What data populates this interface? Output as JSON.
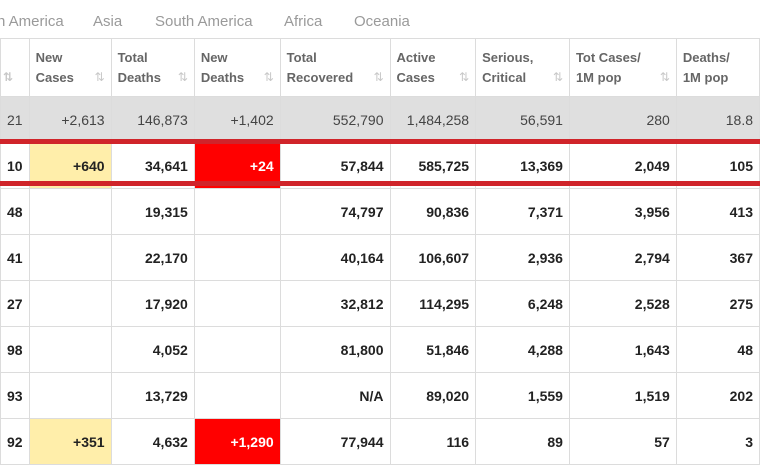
{
  "tabs": [
    "n America",
    "Asia",
    "South America",
    "Africa",
    "Oceania"
  ],
  "columns": [
    {
      "label": ""
    },
    {
      "label": "New\nCases"
    },
    {
      "label": "Total\nDeaths"
    },
    {
      "label": "New\nDeaths"
    },
    {
      "label": "Total\nRecovered"
    },
    {
      "label": "Active\nCases"
    },
    {
      "label": "Serious,\nCritical"
    },
    {
      "label": "Tot Cases/\n1M pop"
    },
    {
      "label": "Deaths/\n1M pop"
    }
  ],
  "sort_icon": "⇅",
  "total_row": [
    "21",
    "+2,613",
    "146,873",
    "+1,402",
    "552,790",
    "1,484,258",
    "56,591",
    "280",
    "18.8"
  ],
  "rows": [
    [
      "10",
      "+640",
      "34,641",
      "+24",
      "57,844",
      "585,725",
      "13,369",
      "2,049",
      "105"
    ],
    [
      "48",
      "",
      "19,315",
      "",
      "74,797",
      "90,836",
      "7,371",
      "3,956",
      "413"
    ],
    [
      "41",
      "",
      "22,170",
      "",
      "40,164",
      "106,607",
      "2,936",
      "2,794",
      "367"
    ],
    [
      "27",
      "",
      "17,920",
      "",
      "32,812",
      "114,295",
      "6,248",
      "2,528",
      "275"
    ],
    [
      "98",
      "",
      "4,052",
      "",
      "81,800",
      "51,846",
      "4,288",
      "1,643",
      "48"
    ],
    [
      "93",
      "",
      "13,729",
      "",
      "N/A",
      "89,020",
      "1,559",
      "1,519",
      "202"
    ],
    [
      "92",
      "+351",
      "4,632",
      "+1,290",
      "77,944",
      "116",
      "89",
      "57",
      "3"
    ]
  ],
  "highlight_colors": {
    "new_cases": "#ffeeaa",
    "new_deaths": "#ff0000",
    "red_line": "#d0242a",
    "total_row": "#dfdfdf"
  }
}
